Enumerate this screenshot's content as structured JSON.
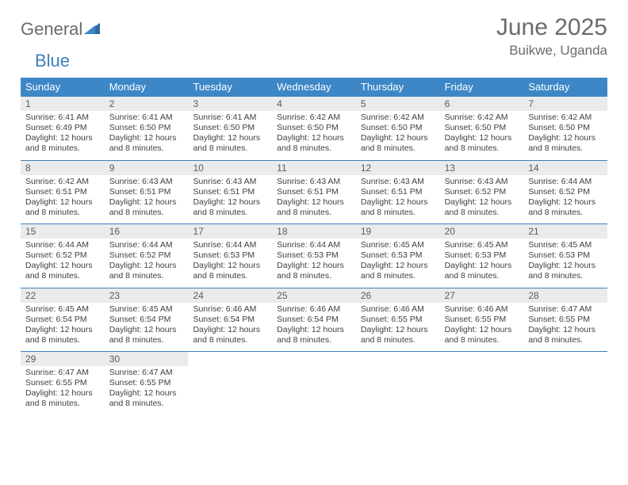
{
  "logo": {
    "part1": "General",
    "part2": "Blue"
  },
  "title": "June 2025",
  "location": "Buikwe, Uganda",
  "colors": {
    "header_bg": "#3d87c7",
    "week_border": "#3d7fb8",
    "daynum_bg": "#e9ebec",
    "text_gray": "#6b6b6b",
    "logo_blue": "#3d7fb8",
    "body_text": "#404040"
  },
  "day_labels": [
    "Sunday",
    "Monday",
    "Tuesday",
    "Wednesday",
    "Thursday",
    "Friday",
    "Saturday"
  ],
  "weeks": [
    [
      {
        "n": "1",
        "sr": "6:41 AM",
        "ss": "6:49 PM",
        "dl": "12 hours and 8 minutes."
      },
      {
        "n": "2",
        "sr": "6:41 AM",
        "ss": "6:50 PM",
        "dl": "12 hours and 8 minutes."
      },
      {
        "n": "3",
        "sr": "6:41 AM",
        "ss": "6:50 PM",
        "dl": "12 hours and 8 minutes."
      },
      {
        "n": "4",
        "sr": "6:42 AM",
        "ss": "6:50 PM",
        "dl": "12 hours and 8 minutes."
      },
      {
        "n": "5",
        "sr": "6:42 AM",
        "ss": "6:50 PM",
        "dl": "12 hours and 8 minutes."
      },
      {
        "n": "6",
        "sr": "6:42 AM",
        "ss": "6:50 PM",
        "dl": "12 hours and 8 minutes."
      },
      {
        "n": "7",
        "sr": "6:42 AM",
        "ss": "6:50 PM",
        "dl": "12 hours and 8 minutes."
      }
    ],
    [
      {
        "n": "8",
        "sr": "6:42 AM",
        "ss": "6:51 PM",
        "dl": "12 hours and 8 minutes."
      },
      {
        "n": "9",
        "sr": "6:43 AM",
        "ss": "6:51 PM",
        "dl": "12 hours and 8 minutes."
      },
      {
        "n": "10",
        "sr": "6:43 AM",
        "ss": "6:51 PM",
        "dl": "12 hours and 8 minutes."
      },
      {
        "n": "11",
        "sr": "6:43 AM",
        "ss": "6:51 PM",
        "dl": "12 hours and 8 minutes."
      },
      {
        "n": "12",
        "sr": "6:43 AM",
        "ss": "6:51 PM",
        "dl": "12 hours and 8 minutes."
      },
      {
        "n": "13",
        "sr": "6:43 AM",
        "ss": "6:52 PM",
        "dl": "12 hours and 8 minutes."
      },
      {
        "n": "14",
        "sr": "6:44 AM",
        "ss": "6:52 PM",
        "dl": "12 hours and 8 minutes."
      }
    ],
    [
      {
        "n": "15",
        "sr": "6:44 AM",
        "ss": "6:52 PM",
        "dl": "12 hours and 8 minutes."
      },
      {
        "n": "16",
        "sr": "6:44 AM",
        "ss": "6:52 PM",
        "dl": "12 hours and 8 minutes."
      },
      {
        "n": "17",
        "sr": "6:44 AM",
        "ss": "6:53 PM",
        "dl": "12 hours and 8 minutes."
      },
      {
        "n": "18",
        "sr": "6:44 AM",
        "ss": "6:53 PM",
        "dl": "12 hours and 8 minutes."
      },
      {
        "n": "19",
        "sr": "6:45 AM",
        "ss": "6:53 PM",
        "dl": "12 hours and 8 minutes."
      },
      {
        "n": "20",
        "sr": "6:45 AM",
        "ss": "6:53 PM",
        "dl": "12 hours and 8 minutes."
      },
      {
        "n": "21",
        "sr": "6:45 AM",
        "ss": "6:53 PM",
        "dl": "12 hours and 8 minutes."
      }
    ],
    [
      {
        "n": "22",
        "sr": "6:45 AM",
        "ss": "6:54 PM",
        "dl": "12 hours and 8 minutes."
      },
      {
        "n": "23",
        "sr": "6:45 AM",
        "ss": "6:54 PM",
        "dl": "12 hours and 8 minutes."
      },
      {
        "n": "24",
        "sr": "6:46 AM",
        "ss": "6:54 PM",
        "dl": "12 hours and 8 minutes."
      },
      {
        "n": "25",
        "sr": "6:46 AM",
        "ss": "6:54 PM",
        "dl": "12 hours and 8 minutes."
      },
      {
        "n": "26",
        "sr": "6:46 AM",
        "ss": "6:55 PM",
        "dl": "12 hours and 8 minutes."
      },
      {
        "n": "27",
        "sr": "6:46 AM",
        "ss": "6:55 PM",
        "dl": "12 hours and 8 minutes."
      },
      {
        "n": "28",
        "sr": "6:47 AM",
        "ss": "6:55 PM",
        "dl": "12 hours and 8 minutes."
      }
    ],
    [
      {
        "n": "29",
        "sr": "6:47 AM",
        "ss": "6:55 PM",
        "dl": "12 hours and 8 minutes."
      },
      {
        "n": "30",
        "sr": "6:47 AM",
        "ss": "6:55 PM",
        "dl": "12 hours and 8 minutes."
      },
      null,
      null,
      null,
      null,
      null
    ]
  ],
  "labels": {
    "sunrise": "Sunrise: ",
    "sunset": "Sunset: ",
    "daylight": "Daylight: "
  }
}
